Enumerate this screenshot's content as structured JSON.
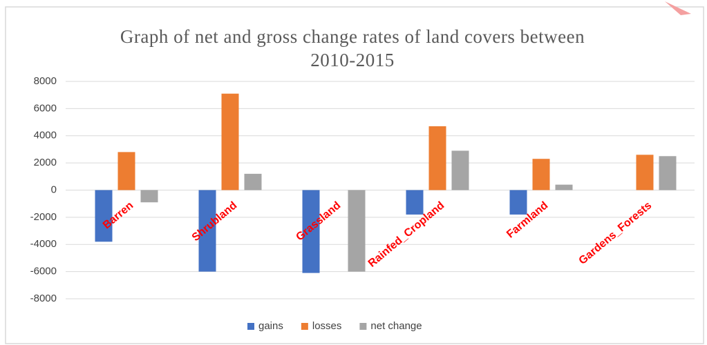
{
  "chart_data": {
    "type": "bar",
    "title": "Graph of net and gross change rates of land covers between 2010-2015",
    "categories": [
      "Barren",
      "Shrubland",
      "Grassland",
      "Rainfed_Cropland",
      "Farmland",
      "Gardens_Forests"
    ],
    "series": [
      {
        "name": "gains",
        "color": "#4472c4",
        "values": [
          -3800,
          -6000,
          -6100,
          -1800,
          -1800,
          0
        ]
      },
      {
        "name": "losses",
        "color": "#ed7d31",
        "values": [
          2800,
          7100,
          0,
          4700,
          2300,
          2600
        ]
      },
      {
        "name": "net change",
        "color": "#a5a5a5",
        "values": [
          -900,
          1200,
          -6000,
          2900,
          400,
          2500
        ]
      }
    ],
    "ylim": [
      -8000,
      8000
    ],
    "yticks": [
      -8000,
      -6000,
      -4000,
      -2000,
      0,
      2000,
      4000,
      6000,
      8000
    ],
    "grid": true,
    "legend": "bottom"
  }
}
